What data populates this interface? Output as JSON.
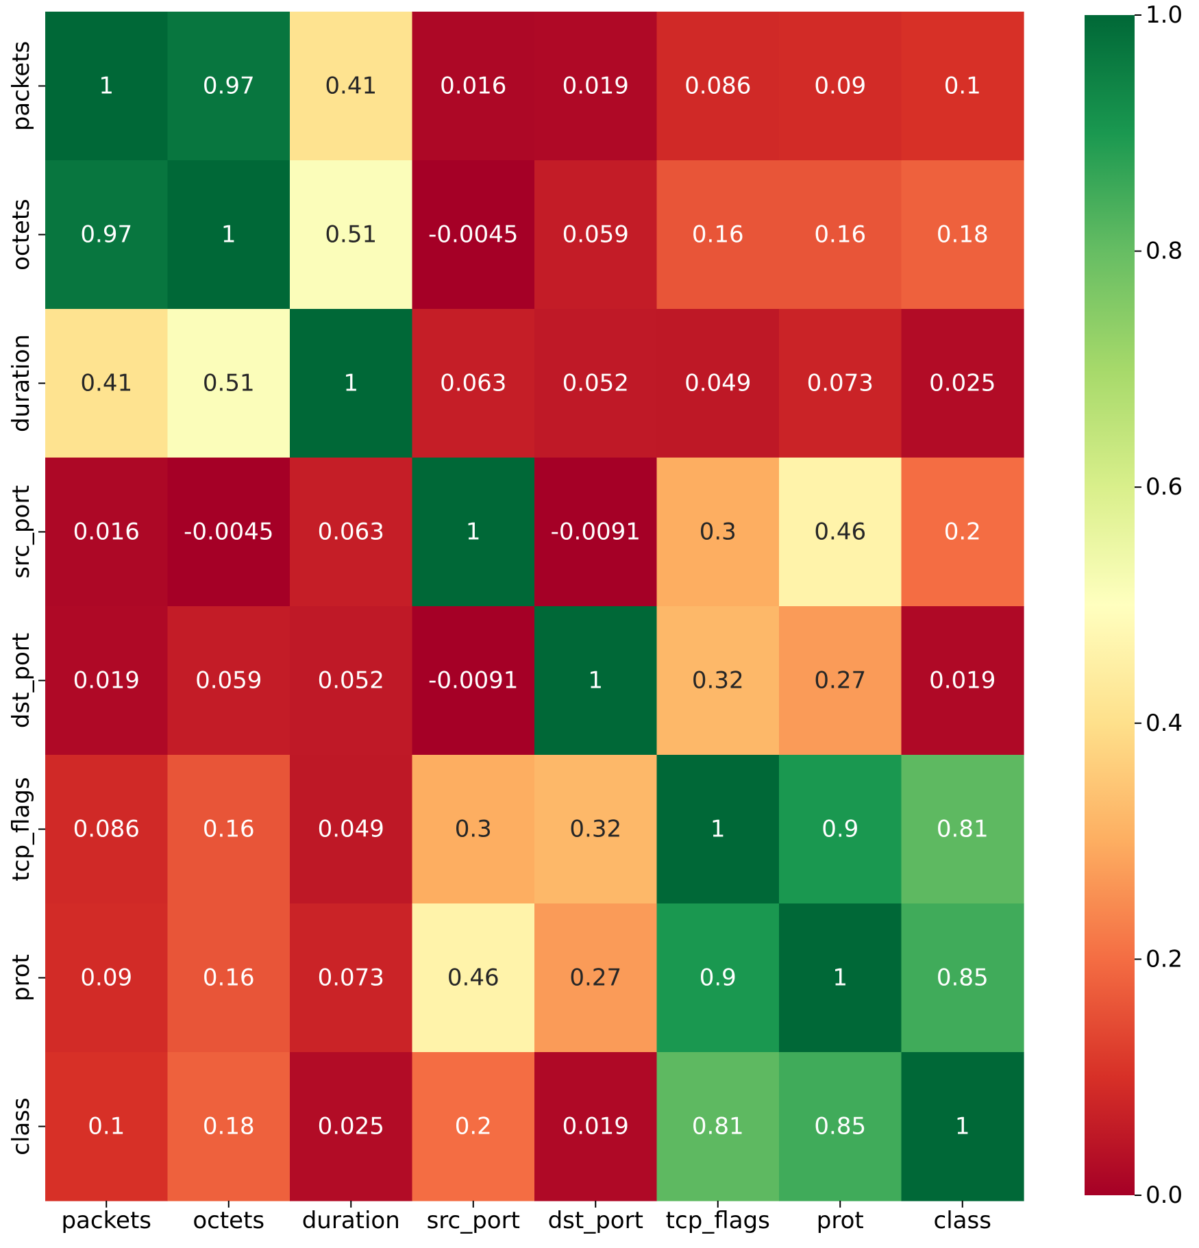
{
  "chart_data": {
    "type": "heatmap",
    "title": "",
    "xlabel": "",
    "ylabel": "",
    "labels": [
      "packets",
      "octets",
      "duration",
      "src_port",
      "dst_port",
      "tcp_flags",
      "prot",
      "class"
    ],
    "values": [
      [
        1,
        0.97,
        0.41,
        0.016,
        0.019,
        0.086,
        0.09,
        0.1
      ],
      [
        0.97,
        1,
        0.51,
        -0.0045,
        0.059,
        0.16,
        0.16,
        0.18
      ],
      [
        0.41,
        0.51,
        1,
        0.063,
        0.052,
        0.049,
        0.073,
        0.025
      ],
      [
        0.016,
        -0.0045,
        0.063,
        1,
        -0.0091,
        0.3,
        0.46,
        0.2
      ],
      [
        0.019,
        0.059,
        0.052,
        -0.0091,
        1,
        0.32,
        0.27,
        0.019
      ],
      [
        0.086,
        0.16,
        0.049,
        0.3,
        0.32,
        1,
        0.9,
        0.81
      ],
      [
        0.09,
        0.16,
        0.073,
        0.46,
        0.27,
        0.9,
        1,
        0.85
      ],
      [
        0.1,
        0.18,
        0.025,
        0.2,
        0.019,
        0.81,
        0.85,
        1
      ]
    ],
    "annotations": [
      [
        "1",
        "0.97",
        "0.41",
        "0.016",
        "0.019",
        "0.086",
        "0.09",
        "0.1"
      ],
      [
        "0.97",
        "1",
        "0.51",
        "-0.0045",
        "0.059",
        "0.16",
        "0.16",
        "0.18"
      ],
      [
        "0.41",
        "0.51",
        "1",
        "0.063",
        "0.052",
        "0.049",
        "0.073",
        "0.025"
      ],
      [
        "0.016",
        "-0.0045",
        "0.063",
        "1",
        "-0.0091",
        "0.3",
        "0.46",
        "0.2"
      ],
      [
        "0.019",
        "0.059",
        "0.052",
        "-0.0091",
        "1",
        "0.32",
        "0.27",
        "0.019"
      ],
      [
        "0.086",
        "0.16",
        "0.049",
        "0.3",
        "0.32",
        "1",
        "0.9",
        "0.81"
      ],
      [
        "0.09",
        "0.16",
        "0.073",
        "0.46",
        "0.27",
        "0.9",
        "1",
        "0.85"
      ],
      [
        "0.1",
        "0.18",
        "0.025",
        "0.2",
        "0.019",
        "0.81",
        "0.85",
        "1"
      ]
    ],
    "colormap": "RdYlGn",
    "vmin": 0.0,
    "vmax": 1.0,
    "colorbar": {
      "ticks": [
        0.0,
        0.2,
        0.4,
        0.6,
        0.8,
        1.0
      ],
      "tick_labels": [
        "0.0",
        "0.2",
        "0.4",
        "0.6",
        "0.8",
        "1.0"
      ],
      "position": "right"
    }
  }
}
